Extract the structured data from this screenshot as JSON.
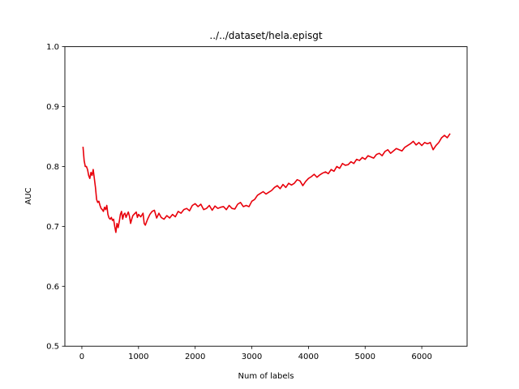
{
  "chart_data": {
    "type": "line",
    "title": "../../dataset/hela.episgt",
    "xlabel": "Num of labels",
    "ylabel": "AUC",
    "xlim": [
      -300,
      6800
    ],
    "ylim": [
      0.5,
      1.0
    ],
    "xticks": [
      0,
      1000,
      2000,
      3000,
      4000,
      5000,
      6000
    ],
    "yticks": [
      0.5,
      0.6,
      0.7,
      0.8,
      0.9,
      1.0
    ],
    "xtick_labels": [
      "0",
      "1000",
      "2000",
      "3000",
      "4000",
      "5000",
      "6000"
    ],
    "ytick_labels": [
      "0.5",
      "0.6",
      "0.7",
      "0.8",
      "0.9",
      "1.0"
    ],
    "grid": false,
    "series": [
      {
        "name": "AUC",
        "color": "#e8000b",
        "x": [
          20,
          40,
          60,
          80,
          100,
          120,
          140,
          160,
          180,
          200,
          220,
          240,
          260,
          280,
          300,
          320,
          340,
          360,
          380,
          400,
          420,
          440,
          460,
          480,
          500,
          520,
          540,
          560,
          580,
          600,
          620,
          640,
          660,
          680,
          700,
          720,
          740,
          760,
          780,
          800,
          820,
          840,
          860,
          880,
          900,
          920,
          940,
          960,
          980,
          1000,
          1040,
          1080,
          1100,
          1120,
          1160,
          1200,
          1240,
          1280,
          1320,
          1360,
          1400,
          1450,
          1500,
          1550,
          1600,
          1650,
          1700,
          1750,
          1800,
          1850,
          1900,
          1950,
          2000,
          2050,
          2100,
          2150,
          2200,
          2250,
          2300,
          2350,
          2400,
          2450,
          2500,
          2550,
          2600,
          2650,
          2700,
          2750,
          2800,
          2850,
          2900,
          2950,
          3000,
          3050,
          3100,
          3150,
          3200,
          3250,
          3300,
          3350,
          3400,
          3450,
          3500,
          3550,
          3600,
          3650,
          3700,
          3750,
          3800,
          3850,
          3900,
          3950,
          4000,
          4050,
          4100,
          4150,
          4200,
          4250,
          4300,
          4350,
          4400,
          4450,
          4500,
          4550,
          4600,
          4650,
          4700,
          4750,
          4800,
          4850,
          4900,
          4950,
          5000,
          5050,
          5100,
          5150,
          5200,
          5250,
          5300,
          5350,
          5400,
          5450,
          5500,
          5550,
          5600,
          5650,
          5700,
          5750,
          5800,
          5850,
          5900,
          5950,
          6000,
          6050,
          6100,
          6150,
          6200,
          6250,
          6300,
          6350,
          6400,
          6450,
          6500
        ],
        "y": [
          0.833,
          0.81,
          0.8,
          0.8,
          0.795,
          0.785,
          0.78,
          0.79,
          0.785,
          0.795,
          0.78,
          0.765,
          0.745,
          0.74,
          0.742,
          0.735,
          0.73,
          0.728,
          0.725,
          0.732,
          0.728,
          0.735,
          0.72,
          0.714,
          0.712,
          0.715,
          0.71,
          0.712,
          0.7,
          0.69,
          0.705,
          0.698,
          0.708,
          0.72,
          0.725,
          0.712,
          0.72,
          0.722,
          0.715,
          0.72,
          0.724,
          0.717,
          0.705,
          0.712,
          0.718,
          0.72,
          0.722,
          0.724,
          0.715,
          0.72,
          0.716,
          0.722,
          0.705,
          0.702,
          0.712,
          0.72,
          0.725,
          0.727,
          0.714,
          0.722,
          0.715,
          0.712,
          0.718,
          0.714,
          0.72,
          0.716,
          0.725,
          0.722,
          0.728,
          0.73,
          0.726,
          0.735,
          0.738,
          0.733,
          0.737,
          0.728,
          0.73,
          0.735,
          0.727,
          0.734,
          0.73,
          0.732,
          0.733,
          0.728,
          0.735,
          0.73,
          0.729,
          0.737,
          0.74,
          0.733,
          0.735,
          0.733,
          0.742,
          0.745,
          0.752,
          0.755,
          0.758,
          0.754,
          0.757,
          0.76,
          0.765,
          0.768,
          0.763,
          0.77,
          0.765,
          0.772,
          0.769,
          0.772,
          0.778,
          0.776,
          0.768,
          0.775,
          0.78,
          0.783,
          0.787,
          0.782,
          0.786,
          0.789,
          0.791,
          0.788,
          0.795,
          0.792,
          0.8,
          0.797,
          0.805,
          0.802,
          0.803,
          0.808,
          0.805,
          0.812,
          0.81,
          0.815,
          0.812,
          0.818,
          0.816,
          0.814,
          0.82,
          0.822,
          0.818,
          0.825,
          0.828,
          0.822,
          0.826,
          0.83,
          0.828,
          0.826,
          0.832,
          0.835,
          0.838,
          0.842,
          0.836,
          0.84,
          0.835,
          0.84,
          0.838,
          0.84,
          0.828,
          0.835,
          0.84,
          0.848,
          0.852,
          0.848,
          0.855
        ]
      }
    ]
  }
}
